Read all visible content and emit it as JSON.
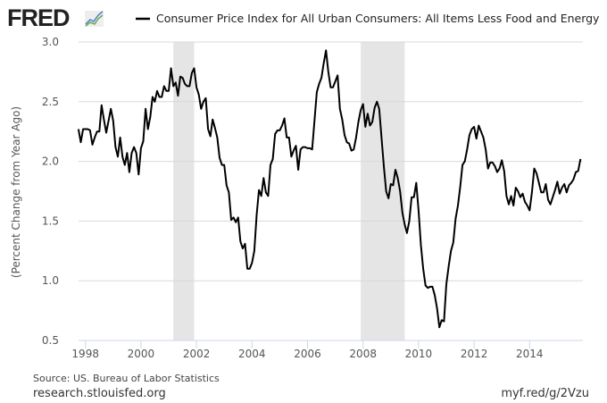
{
  "logo": {
    "text": "FRED"
  },
  "chart_data": {
    "type": "line",
    "title": "Consumer Price Index for All Urban Consumers: All Items Less Food and Energy",
    "xlabel": "",
    "ylabel": "(Percent Change from Year Ago)",
    "ylim": [
      0.5,
      3.0
    ],
    "yticks": [
      "0.5",
      "1.0",
      "1.5",
      "2.0",
      "2.5",
      "3.0"
    ],
    "xticks": [
      "1998",
      "2000",
      "2002",
      "2004",
      "2006",
      "2008",
      "2010",
      "2012",
      "2014"
    ],
    "grid": true,
    "legend": "top",
    "recessions": [
      {
        "start": "2001-03",
        "end": "2001-11"
      },
      {
        "start": "2007-12",
        "end": "2009-06"
      }
    ],
    "series": [
      {
        "name": "Consumer Price Index for All Urban Consumers: All Items Less Food and Energy",
        "color": "#000000",
        "start": "1997-10",
        "frequency": "monthly",
        "values": [
          2.27,
          2.16,
          2.27,
          2.27,
          2.27,
          2.26,
          2.14,
          2.2,
          2.25,
          2.25,
          2.47,
          2.35,
          2.24,
          2.34,
          2.44,
          2.34,
          2.12,
          2.04,
          2.2,
          2.04,
          1.97,
          2.07,
          1.91,
          2.07,
          2.12,
          2.07,
          1.89,
          2.11,
          2.17,
          2.44,
          2.27,
          2.37,
          2.54,
          2.5,
          2.59,
          2.54,
          2.54,
          2.63,
          2.59,
          2.59,
          2.78,
          2.63,
          2.66,
          2.55,
          2.71,
          2.7,
          2.65,
          2.63,
          2.63,
          2.74,
          2.78,
          2.62,
          2.56,
          2.44,
          2.5,
          2.53,
          2.27,
          2.21,
          2.35,
          2.28,
          2.2,
          2.03,
          1.97,
          1.97,
          1.8,
          1.74,
          1.51,
          1.53,
          1.49,
          1.53,
          1.33,
          1.27,
          1.31,
          1.1,
          1.1,
          1.15,
          1.25,
          1.55,
          1.76,
          1.71,
          1.86,
          1.74,
          1.71,
          1.97,
          2.02,
          2.23,
          2.26,
          2.26,
          2.3,
          2.36,
          2.2,
          2.2,
          2.04,
          2.09,
          2.13,
          1.93,
          2.1,
          2.12,
          2.12,
          2.11,
          2.11,
          2.1,
          2.34,
          2.58,
          2.65,
          2.7,
          2.82,
          2.93,
          2.75,
          2.62,
          2.62,
          2.67,
          2.72,
          2.44,
          2.35,
          2.22,
          2.16,
          2.15,
          2.09,
          2.1,
          2.2,
          2.33,
          2.43,
          2.48,
          2.29,
          2.4,
          2.3,
          2.33,
          2.45,
          2.5,
          2.44,
          2.2,
          1.96,
          1.75,
          1.69,
          1.81,
          1.8,
          1.93,
          1.86,
          1.75,
          1.57,
          1.47,
          1.4,
          1.5,
          1.7,
          1.7,
          1.82,
          1.59,
          1.3,
          1.1,
          0.96,
          0.94,
          0.95,
          0.95,
          0.88,
          0.77,
          0.61,
          0.67,
          0.66,
          0.97,
          1.12,
          1.25,
          1.32,
          1.52,
          1.63,
          1.79,
          1.97,
          2.0,
          2.1,
          2.22,
          2.27,
          2.29,
          2.19,
          2.3,
          2.25,
          2.2,
          2.1,
          1.94,
          1.99,
          1.99,
          1.96,
          1.91,
          1.94,
          2.01,
          1.92,
          1.71,
          1.64,
          1.71,
          1.63,
          1.78,
          1.75,
          1.7,
          1.73,
          1.66,
          1.63,
          1.59,
          1.74,
          1.94,
          1.9,
          1.82,
          1.74,
          1.74,
          1.81,
          1.68,
          1.64,
          1.7,
          1.76,
          1.83,
          1.73,
          1.78,
          1.81,
          1.74,
          1.8,
          1.82,
          1.85,
          1.91,
          1.92,
          2.02
        ]
      }
    ]
  },
  "footer": {
    "source": "Source: US. Bureau of Labor Statistics",
    "site": "research.stlouisfed.org",
    "short_link": "myf.red/g/2Vzu"
  }
}
